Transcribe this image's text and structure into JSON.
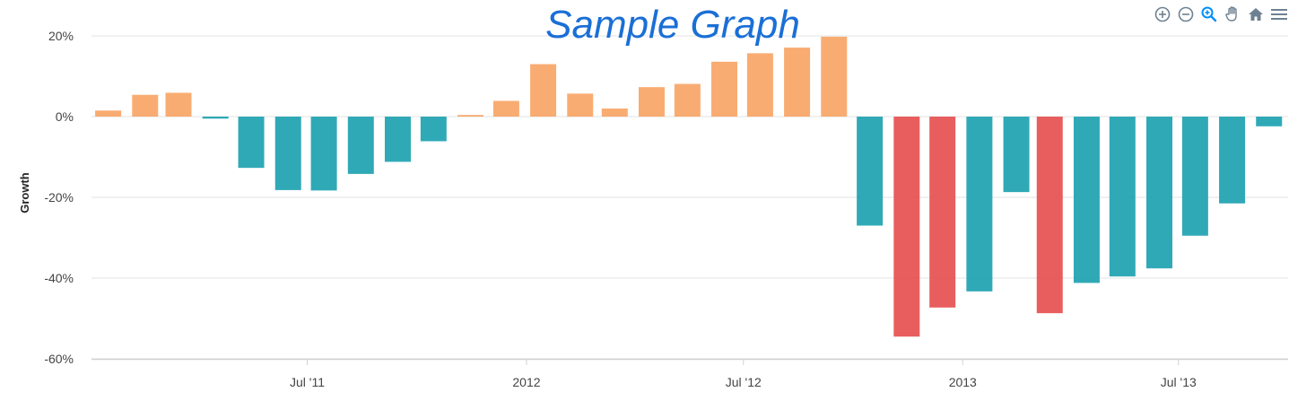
{
  "chart_data": {
    "type": "bar",
    "title": "Sample Graph",
    "ylabel": "Growth",
    "ylim": [
      -60,
      20
    ],
    "yticks": [
      20,
      0,
      -20,
      -40,
      -60
    ],
    "ytick_labels": [
      "20%",
      "0%",
      "-20%",
      "-40%",
      "-60%"
    ],
    "xticks": [
      {
        "date": "2011-07-01",
        "label": "Jul '11"
      },
      {
        "date": "2012-01-01",
        "label": "2012"
      },
      {
        "date": "2012-07-01",
        "label": "Jul '12"
      },
      {
        "date": "2013-01-01",
        "label": "2013"
      },
      {
        "date": "2013-07-01",
        "label": "Jul '13"
      }
    ],
    "x_range": [
      "2011-01-01",
      "2013-10-01"
    ],
    "grid": true,
    "colors": {
      "positive": "#f9a566",
      "negative": "#1ea2b1",
      "highlight": "#e65050"
    },
    "bars": [
      {
        "date": "2011-01-15",
        "value": 1.5,
        "color": "positive"
      },
      {
        "date": "2011-02-15",
        "value": 5.4,
        "color": "positive"
      },
      {
        "date": "2011-03-15",
        "value": 5.9,
        "color": "positive"
      },
      {
        "date": "2011-04-15",
        "value": -0.5,
        "color": "negative"
      },
      {
        "date": "2011-05-15",
        "value": -12.7,
        "color": "negative"
      },
      {
        "date": "2011-06-15",
        "value": -18.2,
        "color": "negative"
      },
      {
        "date": "2011-07-15",
        "value": -18.3,
        "color": "negative"
      },
      {
        "date": "2011-08-15",
        "value": -14.2,
        "color": "negative"
      },
      {
        "date": "2011-09-15",
        "value": -11.2,
        "color": "negative"
      },
      {
        "date": "2011-10-15",
        "value": -6.1,
        "color": "negative"
      },
      {
        "date": "2011-11-15",
        "value": 0.4,
        "color": "positive"
      },
      {
        "date": "2011-12-15",
        "value": 3.9,
        "color": "positive"
      },
      {
        "date": "2012-01-15",
        "value": 13.0,
        "color": "positive"
      },
      {
        "date": "2012-02-15",
        "value": 5.7,
        "color": "positive"
      },
      {
        "date": "2012-03-15",
        "value": 2.0,
        "color": "positive"
      },
      {
        "date": "2012-04-15",
        "value": 7.3,
        "color": "positive"
      },
      {
        "date": "2012-05-15",
        "value": 8.1,
        "color": "positive"
      },
      {
        "date": "2012-06-15",
        "value": 13.6,
        "color": "positive"
      },
      {
        "date": "2012-07-15",
        "value": 15.7,
        "color": "positive"
      },
      {
        "date": "2012-08-15",
        "value": 17.1,
        "color": "positive"
      },
      {
        "date": "2012-09-15",
        "value": 19.8,
        "color": "positive"
      },
      {
        "date": "2012-10-15",
        "value": -27.0,
        "color": "negative"
      },
      {
        "date": "2012-11-15",
        "value": -54.5,
        "color": "highlight"
      },
      {
        "date": "2012-12-15",
        "value": -47.3,
        "color": "highlight"
      },
      {
        "date": "2013-01-15",
        "value": -43.3,
        "color": "negative"
      },
      {
        "date": "2013-02-15",
        "value": -18.7,
        "color": "negative"
      },
      {
        "date": "2013-03-15",
        "value": -48.7,
        "color": "highlight"
      },
      {
        "date": "2013-04-15",
        "value": -41.2,
        "color": "negative"
      },
      {
        "date": "2013-05-15",
        "value": -39.6,
        "color": "negative"
      },
      {
        "date": "2013-06-15",
        "value": -37.6,
        "color": "negative"
      },
      {
        "date": "2013-07-15",
        "value": -29.5,
        "color": "negative"
      },
      {
        "date": "2013-08-15",
        "value": -21.5,
        "color": "negative"
      },
      {
        "date": "2013-09-15",
        "value": -2.4,
        "color": "negative"
      }
    ]
  },
  "toolbar": {
    "icons": [
      "zoom-in-icon",
      "zoom-out-icon",
      "zoom-select-icon",
      "pan-hand-icon",
      "home-icon",
      "menu-icon"
    ],
    "icon_color": "#6e8192",
    "active_color": "#008ffb"
  }
}
